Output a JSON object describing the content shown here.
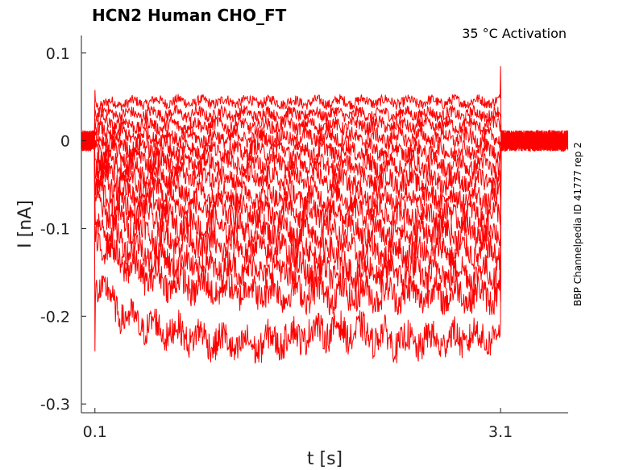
{
  "chart_data": {
    "type": "line",
    "title": "HCN2  Human  CHO_FT",
    "annotation": "35 °C  Activation",
    "side_label": "BBP Channelpedia ID 41777 rep 2",
    "xlabel": "t [s]",
    "ylabel": "I [nA]",
    "xlim": [
      0.0,
      3.6
    ],
    "ylim": [
      -0.31,
      0.12
    ],
    "xticks": [
      0.1,
      3.1
    ],
    "xtick_labels": [
      "0.1",
      "3.1"
    ],
    "yticks": [
      0.1,
      0,
      -0.1,
      -0.2,
      -0.3
    ],
    "ytick_labels": [
      "0.1",
      "0",
      "-0.1",
      "-0.2",
      "-0.3"
    ],
    "grid": false,
    "line_color": "#ff0000",
    "series": [
      {
        "values": [
          0.0,
          0.042,
          0.043,
          0.045,
          0.044,
          0.045,
          0.044,
          0.044,
          0.045,
          0.044,
          0.045,
          0.0
        ]
      },
      {
        "values": [
          0.0,
          0.033,
          0.03,
          0.031,
          0.03,
          0.031,
          0.03,
          0.031,
          0.03,
          0.031,
          0.03,
          0.0
        ]
      },
      {
        "values": [
          0.0,
          0.022,
          0.018,
          0.017,
          0.018,
          0.017,
          0.018,
          0.017,
          0.018,
          0.017,
          0.018,
          0.0
        ]
      },
      {
        "values": [
          0.0,
          0.012,
          0.006,
          0.004,
          0.003,
          0.004,
          0.003,
          0.004,
          0.003,
          0.004,
          0.003,
          0.0
        ]
      },
      {
        "values": [
          0.0,
          0.002,
          -0.006,
          -0.009,
          -0.01,
          -0.011,
          -0.011,
          -0.012,
          -0.011,
          -0.012,
          -0.011,
          0.0
        ]
      },
      {
        "values": [
          0.0,
          -0.008,
          -0.018,
          -0.023,
          -0.025,
          -0.026,
          -0.027,
          -0.027,
          -0.028,
          -0.028,
          -0.028,
          0.0
        ]
      },
      {
        "values": [
          0.0,
          -0.018,
          -0.032,
          -0.038,
          -0.041,
          -0.043,
          -0.044,
          -0.045,
          -0.045,
          -0.046,
          -0.046,
          0.0
        ]
      },
      {
        "values": [
          0.0,
          -0.03,
          -0.047,
          -0.055,
          -0.06,
          -0.062,
          -0.063,
          -0.064,
          -0.065,
          -0.065,
          -0.066,
          0.0
        ]
      },
      {
        "values": [
          0.0,
          -0.042,
          -0.062,
          -0.072,
          -0.078,
          -0.08,
          -0.082,
          -0.083,
          -0.083,
          -0.084,
          -0.084,
          0.0
        ]
      },
      {
        "values": [
          0.0,
          -0.055,
          -0.078,
          -0.09,
          -0.097,
          -0.1,
          -0.102,
          -0.103,
          -0.104,
          -0.104,
          -0.105,
          0.0
        ]
      },
      {
        "values": [
          0.0,
          -0.07,
          -0.097,
          -0.11,
          -0.118,
          -0.122,
          -0.124,
          -0.125,
          -0.126,
          -0.126,
          -0.127,
          0.0
        ]
      },
      {
        "values": [
          0.0,
          -0.09,
          -0.12,
          -0.135,
          -0.143,
          -0.146,
          -0.148,
          -0.149,
          -0.15,
          -0.15,
          -0.151,
          0.0
        ]
      },
      {
        "values": [
          0.0,
          -0.11,
          -0.145,
          -0.16,
          -0.168,
          -0.171,
          -0.173,
          -0.174,
          -0.175,
          -0.175,
          -0.176,
          0.0
        ]
      },
      {
        "values": [
          0.0,
          -0.16,
          -0.205,
          -0.215,
          -0.225,
          -0.235,
          -0.225,
          -0.215,
          -0.22,
          -0.23,
          -0.222,
          0.0
        ]
      }
    ],
    "series_x": [
      0.0,
      0.1,
      0.35,
      0.6,
      0.9,
      1.2,
      1.5,
      1.8,
      2.1,
      2.4,
      3.1,
      3.6
    ]
  }
}
